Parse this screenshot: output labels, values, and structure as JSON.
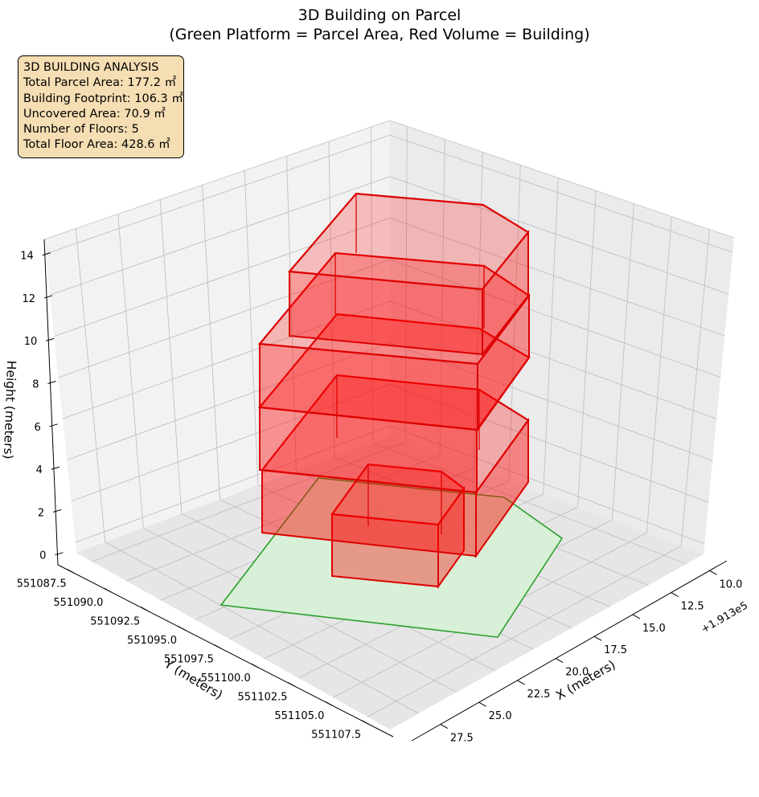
{
  "chart_data": {
    "type": "3d",
    "title": "3D Building on Parcel",
    "subtitle": "(Green Platform = Parcel Area, Red Volume = Building)",
    "xlabel": "X (meters)",
    "ylabel": "Y (meters)",
    "zlabel": "Height (meters)",
    "x_offset_label": "+1.913e5",
    "x_ticks": [
      "10.0",
      "12.5",
      "15.0",
      "17.5",
      "20.0",
      "22.5",
      "25.0",
      "27.5"
    ],
    "y_ticks": [
      "551087.5",
      "551090.0",
      "551092.5",
      "551095.0",
      "551097.5",
      "551100.0",
      "551102.5",
      "551105.0",
      "551107.5"
    ],
    "z_ticks": [
      "0",
      "2",
      "4",
      "6",
      "8",
      "10",
      "12",
      "14"
    ],
    "grid": true,
    "colors": {
      "parcel_fill": "#d5f1d5",
      "parcel_edge": "#2ca02c",
      "building_fill": "#ff0000",
      "building_edge": "#dd0000",
      "info_bg": "#f5deb3"
    },
    "analysis": {
      "heading": "3D BUILDING ANALYSIS",
      "lines": [
        "Total Parcel Area: 177.2 ㎡",
        "Building Footprint: 106.3 ㎡",
        "Uncovered Area: 70.9 ㎡",
        "Number of Floors: 5",
        "Total Floor Area: 428.6 ㎡"
      ]
    },
    "metrics": {
      "total_parcel_area_m2": 177.2,
      "building_footprint_m2": 106.3,
      "uncovered_area_m2": 70.9,
      "number_of_floors": 5,
      "total_floor_area_m2": 428.6
    }
  }
}
